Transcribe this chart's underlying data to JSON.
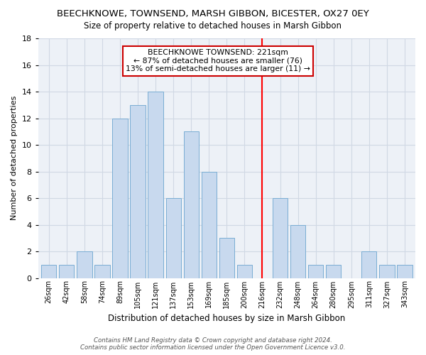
{
  "title": "BEECHKNOWE, TOWNSEND, MARSH GIBBON, BICESTER, OX27 0EY",
  "subtitle": "Size of property relative to detached houses in Marsh Gibbon",
  "xlabel": "Distribution of detached houses by size in Marsh Gibbon",
  "ylabel": "Number of detached properties",
  "bar_labels": [
    "26sqm",
    "42sqm",
    "58sqm",
    "74sqm",
    "89sqm",
    "105sqm",
    "121sqm",
    "137sqm",
    "153sqm",
    "169sqm",
    "185sqm",
    "200sqm",
    "216sqm",
    "232sqm",
    "248sqm",
    "264sqm",
    "280sqm",
    "295sqm",
    "311sqm",
    "327sqm",
    "343sqm"
  ],
  "bar_values": [
    1,
    1,
    2,
    1,
    12,
    13,
    14,
    6,
    11,
    8,
    3,
    1,
    0,
    6,
    4,
    1,
    1,
    0,
    2,
    1,
    1
  ],
  "bar_color": "#c8d9ee",
  "bar_edge_color": "#7aadd4",
  "grid_color": "#d0d8e4",
  "vline_color": "red",
  "vline_pos": 12,
  "annotation_title": "BEECHKNOWE TOWNSEND: 221sqm",
  "annotation_line1": "← 87% of detached houses are smaller (76)",
  "annotation_line2": "13% of semi-detached houses are larger (11) →",
  "annotation_box_facecolor": "#ffffff",
  "annotation_border_color": "#cc0000",
  "footer_line1": "Contains HM Land Registry data © Crown copyright and database right 2024.",
  "footer_line2": "Contains public sector information licensed under the Open Government Licence v3.0.",
  "ylim": [
    0,
    18
  ],
  "yticks": [
    0,
    2,
    4,
    6,
    8,
    10,
    12,
    14,
    16,
    18
  ],
  "bg_color": "#ffffff",
  "plot_bg_color": "#edf1f7"
}
